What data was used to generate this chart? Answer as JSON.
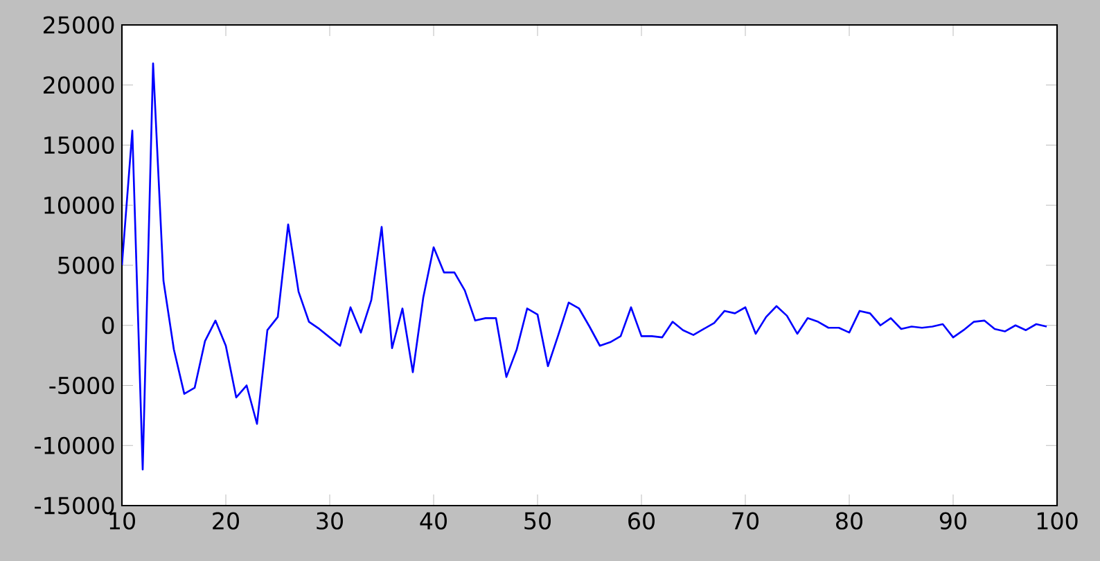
{
  "chart_data": {
    "type": "line",
    "x": [
      10,
      11,
      12,
      13,
      14,
      15,
      16,
      17,
      18,
      19,
      20,
      21,
      22,
      23,
      24,
      25,
      26,
      27,
      28,
      29,
      30,
      31,
      32,
      33,
      34,
      35,
      36,
      37,
      38,
      39,
      40,
      41,
      42,
      43,
      44,
      45,
      46,
      47,
      48,
      49,
      50,
      51,
      52,
      53,
      54,
      55,
      56,
      57,
      58,
      59,
      60,
      61,
      62,
      63,
      64,
      65,
      66,
      67,
      68,
      69,
      70,
      71,
      72,
      73,
      74,
      75,
      76,
      77,
      78,
      79,
      80,
      81,
      82,
      83,
      84,
      85,
      86,
      87,
      88,
      89,
      90,
      91,
      92,
      93,
      94,
      95,
      96,
      97,
      98,
      99
    ],
    "series": [
      {
        "color": "#0000ff",
        "values": [
          5000,
          16200,
          -12000,
          21800,
          3700,
          -2000,
          -5700,
          -5200,
          -1300,
          400,
          -1700,
          -6000,
          -5000,
          -8200,
          -400,
          700,
          8400,
          2800,
          300,
          -300,
          -1000,
          -1700,
          1500,
          -600,
          2100,
          8200,
          -1900,
          1400,
          -3900,
          2300,
          6500,
          4400,
          4400,
          2900,
          400,
          600,
          600,
          -4300,
          -2000,
          1400,
          900,
          -3400,
          -800,
          1900,
          1400,
          -100,
          -1700,
          -1400,
          -900,
          1500,
          -900,
          -900,
          -1000,
          300,
          -400,
          -800,
          -300,
          200,
          1200,
          1000,
          1500,
          -700,
          700,
          1600,
          800,
          -700,
          600,
          300,
          -200,
          -200,
          -600,
          1200,
          1000,
          0,
          600,
          -300,
          -100,
          -200,
          -100,
          100,
          -1000,
          -400,
          300,
          400,
          -300,
          -500,
          0,
          -400,
          100,
          -100
        ]
      }
    ],
    "xlim": [
      10,
      100
    ],
    "ylim": [
      -15000,
      25000
    ],
    "xticks": [
      10,
      20,
      30,
      40,
      50,
      60,
      70,
      80,
      90,
      100
    ],
    "yticks": [
      -15000,
      -10000,
      -5000,
      0,
      5000,
      10000,
      15000,
      20000,
      25000
    ]
  }
}
